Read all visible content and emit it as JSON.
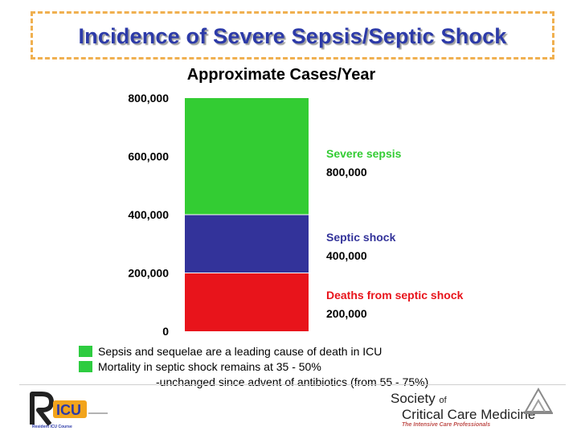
{
  "slide": {
    "title": "Incidence of Severe Sepsis/Septic Shock",
    "bullets": [
      "Sepsis and sequelae are a leading cause of death in ICU",
      "Mortality in septic shock remains at 35 - 50%"
    ],
    "sub_bullet": "-unchanged since advent of antibiotics (from 55 - 75%)"
  },
  "colors": {
    "title": "#2c3aa8",
    "bullet": "#2ecc40",
    "frame": "#f0b050"
  },
  "logos": {
    "ricu_mark": "ICU",
    "ricu_caption": "Resident ICU Course",
    "sccm_line1": "Society",
    "sccm_of": "of",
    "sccm_line2": "Critical Care Medicine",
    "sccm_tagline": "The Intensive Care Professionals"
  },
  "chart_data": {
    "type": "bar",
    "title": "Approximate Cases/Year",
    "ylim": [
      0,
      800000
    ],
    "y_ticks": [
      0,
      200000,
      400000,
      600000,
      800000
    ],
    "y_tick_labels": [
      "0",
      "200,000",
      "400,000",
      "600,000",
      "800,000"
    ],
    "segments": [
      {
        "name": "Deaths from septic shock",
        "value": 200000,
        "value_label": "200,000",
        "color": "#e8141b"
      },
      {
        "name": "Septic shock",
        "value": 400000,
        "value_label": "400,000",
        "color": "#33339a"
      },
      {
        "name": "Severe sepsis",
        "value": 800000,
        "value_label": "800,000",
        "color": "#33cc33"
      }
    ]
  }
}
